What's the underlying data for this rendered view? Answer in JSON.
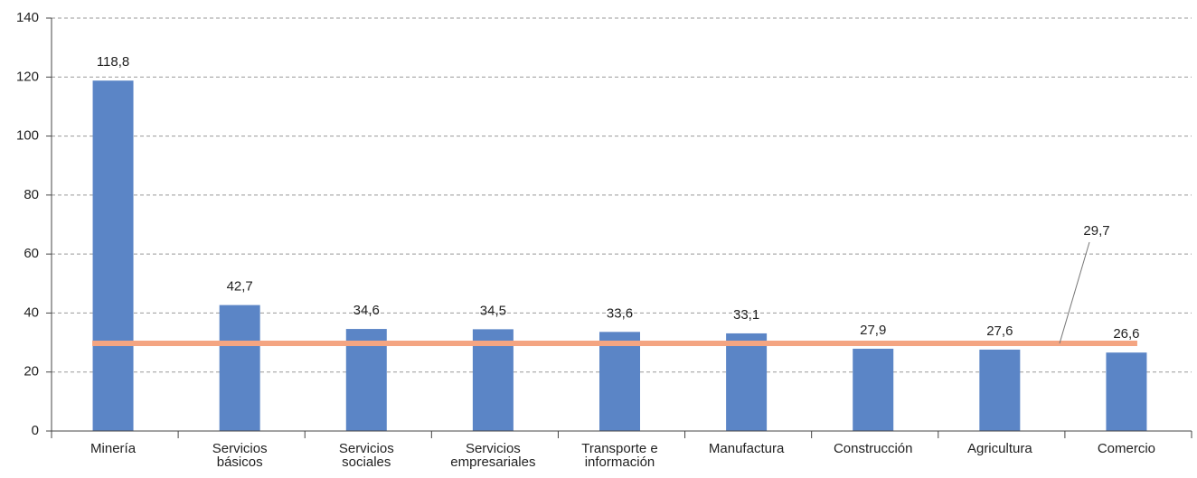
{
  "chart_data": {
    "type": "bar",
    "categories": [
      [
        "Minería"
      ],
      [
        "Servicios",
        "básicos"
      ],
      [
        "Servicios",
        "sociales"
      ],
      [
        "Servicios",
        "empresariales"
      ],
      [
        "Transporte e",
        "información"
      ],
      [
        "Manufactura"
      ],
      [
        "Construcción"
      ],
      [
        "Agricultura"
      ],
      [
        "Comercio"
      ]
    ],
    "values": [
      118.8,
      42.7,
      34.6,
      34.5,
      33.6,
      33.1,
      27.9,
      27.6,
      26.6
    ],
    "value_labels": [
      "118,8",
      "42,7",
      "34,6",
      "34,5",
      "33,6",
      "33,1",
      "27,9",
      "27,6",
      "26,6"
    ],
    "color": "#5b85c6",
    "ylim": [
      0,
      140
    ],
    "yticks": [
      0,
      20,
      40,
      60,
      80,
      100,
      120,
      140
    ],
    "grid": true,
    "reference_line": {
      "value": 29.7,
      "label": "29,7",
      "color": "#f4a582"
    }
  }
}
